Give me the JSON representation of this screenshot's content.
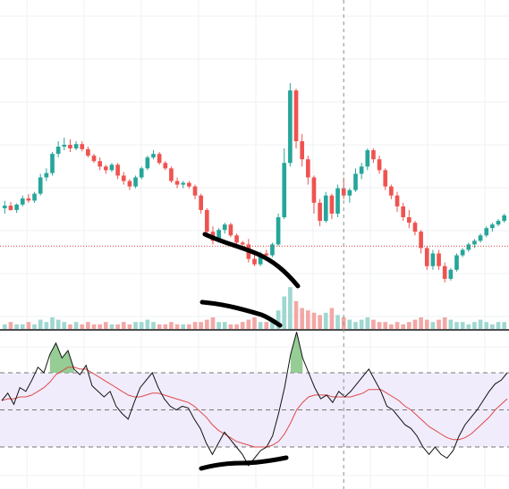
{
  "colors": {
    "background": "#ffffff",
    "grid": "#eef0f3",
    "up": "#26a69a",
    "down": "#ef5350",
    "volume_up": "#9fd7d1",
    "volume_down": "#f2a8a6",
    "price_line": "#d6463c",
    "crosshair": "#8a8d96",
    "divider": "#111111",
    "rsi_line": "#111111",
    "rsi_ma": "#e04a4a",
    "rsi_band": "#f0ecfb",
    "rsi_band_border": "#777777",
    "rsi_overbought_fill": "#7ac07a",
    "drawing": "#000000"
  },
  "chart_data": [
    {
      "type": "candlestick",
      "panel": "price",
      "title": "",
      "xlabel": "",
      "ylabel": "",
      "grid": true,
      "candles": [
        [
          1.35,
          1.55,
          1.2,
          1.42
        ],
        [
          1.42,
          1.52,
          1.28,
          1.3
        ],
        [
          1.3,
          1.48,
          1.22,
          1.45
        ],
        [
          1.45,
          1.7,
          1.4,
          1.62
        ],
        [
          1.62,
          1.74,
          1.5,
          1.56
        ],
        [
          1.56,
          1.8,
          1.5,
          1.75
        ],
        [
          1.75,
          2.3,
          1.7,
          2.2
        ],
        [
          2.2,
          2.45,
          2.1,
          2.32
        ],
        [
          2.32,
          2.9,
          2.25,
          2.85
        ],
        [
          2.85,
          3.2,
          2.75,
          3.05
        ],
        [
          3.05,
          3.3,
          2.95,
          3.1
        ],
        [
          3.1,
          3.25,
          2.9,
          3.0
        ],
        [
          3.0,
          3.2,
          2.95,
          3.12
        ],
        [
          3.12,
          3.2,
          2.92,
          2.98
        ],
        [
          2.98,
          3.05,
          2.75,
          2.8
        ],
        [
          2.8,
          2.85,
          2.6,
          2.65
        ],
        [
          2.65,
          2.75,
          2.4,
          2.5
        ],
        [
          2.5,
          2.55,
          2.3,
          2.4
        ],
        [
          2.4,
          2.6,
          2.35,
          2.55
        ],
        [
          2.55,
          2.6,
          2.15,
          2.25
        ],
        [
          2.25,
          2.35,
          2.0,
          2.1
        ],
        [
          2.1,
          2.15,
          1.85,
          1.95
        ],
        [
          1.95,
          2.25,
          1.9,
          2.2
        ],
        [
          2.2,
          2.5,
          2.15,
          2.45
        ],
        [
          2.45,
          2.8,
          2.4,
          2.75
        ],
        [
          2.75,
          2.95,
          2.7,
          2.85
        ],
        [
          2.85,
          2.9,
          2.55,
          2.6
        ],
        [
          2.6,
          2.65,
          2.4,
          2.45
        ],
        [
          2.45,
          2.5,
          2.05,
          2.1
        ],
        [
          2.1,
          2.2,
          1.9,
          2.0
        ],
        [
          2.0,
          2.1,
          1.9,
          2.05
        ],
        [
          2.05,
          2.1,
          1.9,
          1.95
        ],
        [
          1.95,
          2.0,
          1.6,
          1.7
        ],
        [
          1.7,
          1.75,
          1.2,
          1.3
        ],
        [
          1.3,
          1.35,
          0.6,
          0.7
        ],
        [
          0.7,
          0.85,
          0.35,
          0.45
        ],
        [
          0.45,
          0.8,
          0.4,
          0.75
        ],
        [
          0.75,
          0.95,
          0.65,
          0.9
        ],
        [
          0.9,
          0.95,
          0.55,
          0.6
        ],
        [
          0.6,
          0.65,
          0.3,
          0.4
        ],
        [
          0.4,
          0.45,
          0.25,
          0.35
        ],
        [
          0.35,
          0.5,
          -0.15,
          -0.05
        ],
        [
          -0.05,
          0.1,
          -0.25,
          -0.2
        ],
        [
          -0.2,
          0.15,
          -0.25,
          0.1
        ],
        [
          0.1,
          0.2,
          -0.05,
          0.05
        ],
        [
          0.05,
          0.4,
          0.0,
          0.35
        ],
        [
          0.35,
          1.2,
          0.3,
          1.1
        ],
        [
          1.1,
          3.0,
          1.05,
          2.6
        ],
        [
          2.6,
          4.8,
          2.5,
          4.6
        ],
        [
          4.6,
          4.65,
          3.0,
          3.2
        ],
        [
          3.2,
          3.4,
          2.5,
          2.7
        ],
        [
          2.7,
          2.8,
          2.0,
          2.2
        ],
        [
          2.2,
          2.25,
          1.2,
          1.5
        ],
        [
          1.5,
          1.6,
          0.85,
          1.0
        ],
        [
          1.0,
          1.8,
          0.95,
          1.7
        ],
        [
          1.7,
          1.75,
          1.05,
          1.2
        ],
        [
          1.2,
          2.0,
          1.1,
          1.9
        ],
        [
          1.9,
          2.2,
          1.6,
          1.7
        ],
        [
          1.7,
          1.9,
          1.5,
          1.85
        ],
        [
          1.85,
          2.45,
          1.8,
          2.3
        ],
        [
          2.3,
          2.6,
          2.15,
          2.5
        ],
        [
          2.5,
          3.0,
          2.4,
          2.95
        ],
        [
          2.95,
          3.0,
          2.6,
          2.7
        ],
        [
          2.7,
          2.8,
          2.3,
          2.4
        ],
        [
          2.4,
          2.45,
          1.85,
          1.95
        ],
        [
          1.95,
          2.0,
          1.6,
          1.7
        ],
        [
          1.7,
          1.8,
          1.25,
          1.4
        ],
        [
          1.4,
          1.5,
          1.0,
          1.1
        ],
        [
          1.1,
          1.3,
          0.8,
          0.95
        ],
        [
          0.95,
          1.0,
          0.6,
          0.7
        ],
        [
          0.7,
          0.75,
          0.1,
          0.25
        ],
        [
          0.25,
          0.3,
          -0.35,
          -0.25
        ],
        [
          -0.25,
          0.2,
          -0.35,
          0.1
        ],
        [
          0.1,
          0.2,
          -0.35,
          -0.25
        ],
        [
          -0.25,
          -0.15,
          -0.7,
          -0.6
        ],
        [
          -0.6,
          -0.3,
          -0.65,
          -0.35
        ],
        [
          -0.35,
          0.1,
          -0.4,
          0.05
        ],
        [
          0.05,
          0.25,
          0.0,
          0.2
        ],
        [
          0.2,
          0.4,
          0.15,
          0.35
        ],
        [
          0.35,
          0.5,
          0.25,
          0.45
        ],
        [
          0.45,
          0.65,
          0.4,
          0.6
        ],
        [
          0.6,
          0.85,
          0.55,
          0.8
        ],
        [
          0.8,
          0.95,
          0.7,
          0.9
        ],
        [
          0.9,
          1.05,
          0.85,
          1.0
        ],
        [
          1.0,
          1.2,
          0.95,
          1.15
        ]
      ],
      "reference_line": 0.3,
      "crosshair_index": 57
    },
    {
      "type": "bar",
      "panel": "volume",
      "title": "",
      "values": [
        2,
        3,
        2,
        2,
        3,
        2,
        4,
        3,
        5,
        4,
        3,
        2,
        3,
        2,
        3,
        2,
        2,
        3,
        2,
        2,
        3,
        2,
        3,
        3,
        4,
        3,
        2,
        2,
        3,
        2,
        2,
        2,
        3,
        3,
        4,
        5,
        3,
        3,
        2,
        2,
        3,
        4,
        5,
        3,
        3,
        4,
        8,
        14,
        18,
        12,
        9,
        8,
        7,
        6,
        7,
        9,
        6,
        5,
        4,
        3,
        4,
        5,
        4,
        3,
        3,
        2,
        3,
        2,
        3,
        4,
        5,
        4,
        3,
        4,
        5,
        4,
        3,
        3,
        2,
        3,
        4,
        3,
        2,
        3,
        3
      ]
    },
    {
      "type": "line",
      "panel": "rsi",
      "title": "",
      "ylim": [
        0,
        100
      ],
      "bands": [
        30,
        50,
        70
      ],
      "series": [
        {
          "values": [
            55,
            59,
            53,
            62,
            60,
            66,
            73,
            70,
            80,
            86,
            78,
            82,
            72,
            69,
            74,
            63,
            60,
            57,
            60,
            52,
            48,
            45,
            54,
            62,
            66,
            70,
            62,
            56,
            52,
            50,
            52,
            51,
            45,
            40,
            32,
            26,
            32,
            38,
            34,
            30,
            26,
            20,
            24,
            28,
            30,
            36,
            48,
            62,
            80,
            92,
            78,
            70,
            62,
            56,
            58,
            54,
            60,
            57,
            60,
            64,
            68,
            72,
            66,
            60,
            52,
            50,
            46,
            42,
            40,
            36,
            30,
            26,
            30,
            26,
            24,
            28,
            36,
            42,
            46,
            50,
            55,
            60,
            64,
            66,
            70
          ]
        },
        {
          "values": [
            55,
            56,
            56,
            57,
            57,
            58,
            60,
            62,
            65,
            69,
            71,
            73,
            73,
            72,
            72,
            70,
            68,
            66,
            64,
            62,
            60,
            58,
            57,
            57,
            58,
            59,
            59,
            58,
            57,
            56,
            55,
            54,
            52,
            49,
            46,
            42,
            39,
            37,
            35,
            33,
            32,
            31,
            30,
            30,
            30,
            31,
            33,
            37,
            43,
            50,
            54,
            57,
            58,
            58,
            58,
            57,
            57,
            57,
            57,
            58,
            59,
            61,
            61,
            61,
            59,
            57,
            55,
            52,
            50,
            47,
            44,
            41,
            39,
            37,
            35,
            34,
            34,
            35,
            37,
            40,
            43,
            46,
            50,
            53,
            56
          ]
        }
      ]
    }
  ]
}
